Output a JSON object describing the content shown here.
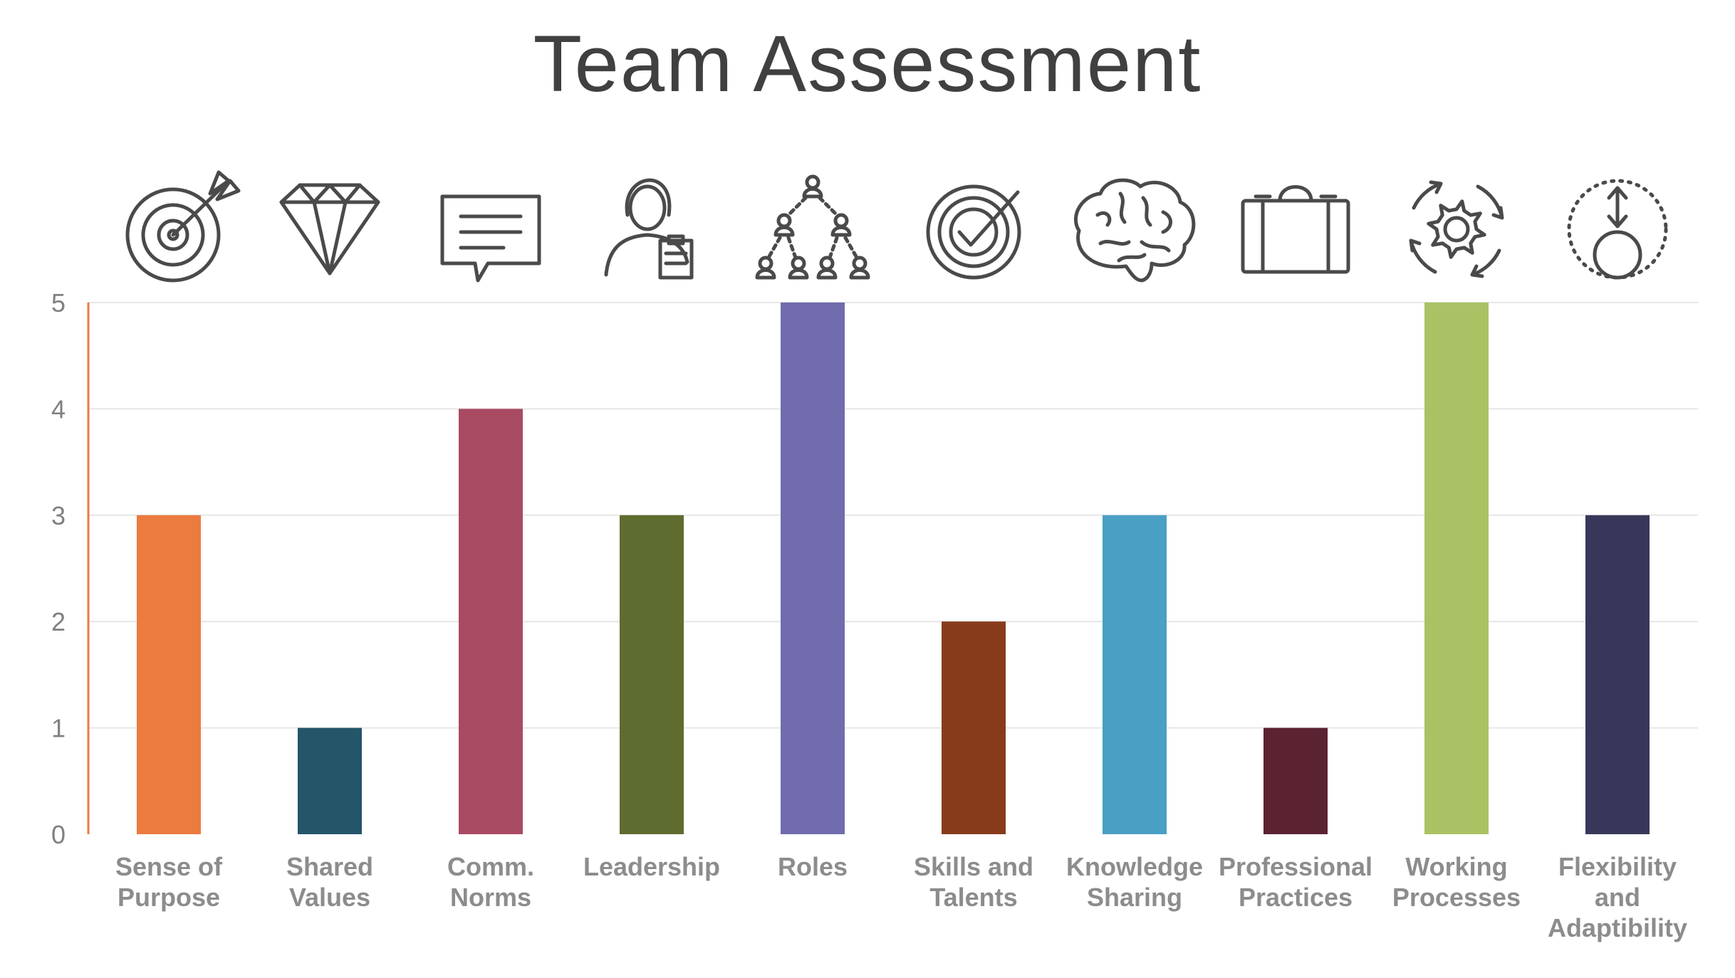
{
  "chart_data": {
    "type": "bar",
    "title": "Team Assessment",
    "categories": [
      [
        "Sense of",
        "Purpose"
      ],
      [
        "Shared",
        "Values"
      ],
      [
        "Comm.",
        "Norms"
      ],
      [
        "Leadership"
      ],
      [
        "Roles"
      ],
      [
        "Skills and",
        "Talents"
      ],
      [
        "Knowledge",
        "Sharing"
      ],
      [
        "Professional",
        "Practices"
      ],
      [
        "Working",
        "Processes"
      ],
      [
        "Flexibility",
        "and",
        "Adaptibility"
      ]
    ],
    "values": [
      3,
      1,
      4,
      3,
      5,
      2,
      3,
      1,
      5,
      3
    ],
    "colors": [
      "#EB7B3F",
      "#245568",
      "#A94A63",
      "#5E6C2F",
      "#706CAD",
      "#873B1A",
      "#4A9FC5",
      "#5B2232",
      "#AAC264",
      "#38375A"
    ],
    "icons": [
      "target-arrow-icon",
      "diamond-icon",
      "speech-bubble-icon",
      "person-clipboard-icon",
      "org-chart-icon",
      "checkmark-target-icon",
      "brain-icon",
      "briefcase-icon",
      "gear-cycle-icon",
      "flexible-circle-icon"
    ],
    "ylim": [
      0,
      5
    ],
    "yticks": [
      0,
      1,
      2,
      3,
      4,
      5
    ],
    "xlabel": "",
    "ylabel": "",
    "grid": true,
    "axis_color": "#EB7B3F",
    "grid_color": "#E6E6E6"
  }
}
